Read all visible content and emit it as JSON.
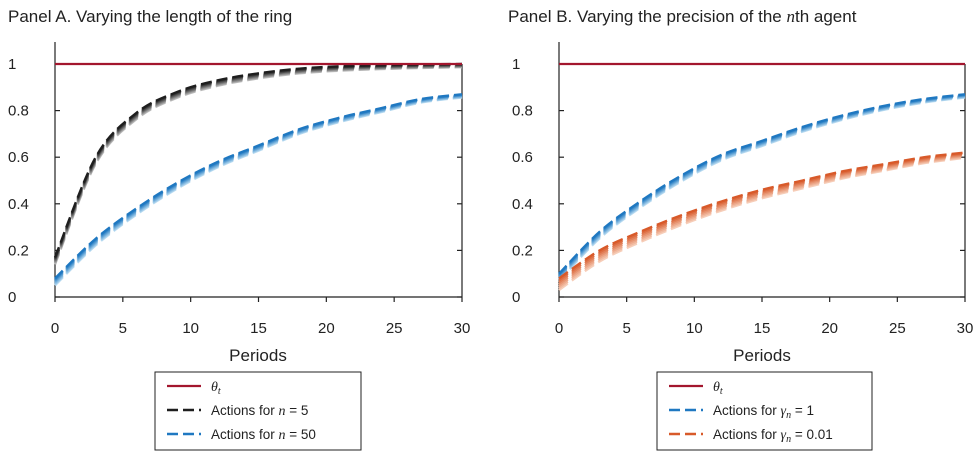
{
  "chart_data": [
    {
      "type": "line",
      "panel_id": "A",
      "title": "Panel A. Varying the length of the ring",
      "xlabel": "Periods",
      "ylabel": "",
      "xlim": [
        0,
        30
      ],
      "ylim": [
        0,
        1
      ],
      "x_ticks": [
        "0",
        "5",
        "10",
        "15",
        "20",
        "25",
        "30"
      ],
      "y_ticks": [
        "0",
        "0.2",
        "0.4",
        "0.6",
        "0.8",
        "1"
      ],
      "x": [
        0,
        3,
        6,
        9,
        12,
        15,
        18,
        21,
        24,
        27,
        30
      ],
      "series": [
        {
          "name": "θt",
          "legend": {
            "text": "",
            "math": "θ",
            "sub": "t"
          },
          "style": "solid",
          "color": "#a3162e",
          "values": [
            1,
            1,
            1,
            1,
            1,
            1,
            1,
            1,
            1,
            1,
            1
          ]
        },
        {
          "name": "Actions for n = 5",
          "legend": {
            "text": "Actions for ",
            "math": "n",
            "sub": "",
            "rest": " = 5"
          },
          "style": "dashed",
          "color": "#1e1e1e",
          "light": "#bdbdbd",
          "band": 0.03,
          "values": [
            0.17,
            0.6,
            0.79,
            0.88,
            0.93,
            0.96,
            0.98,
            0.99,
            0.995,
            0.998,
            1.0
          ]
        },
        {
          "name": "Actions for n = 50",
          "legend": {
            "text": "Actions for ",
            "math": "n",
            "sub": "",
            "rest": " = 50"
          },
          "style": "dashed",
          "color": "#1f78c1",
          "light": "#b9dbf1",
          "band": 0.03,
          "values": [
            0.08,
            0.25,
            0.38,
            0.49,
            0.58,
            0.65,
            0.72,
            0.77,
            0.81,
            0.85,
            0.87
          ]
        }
      ]
    },
    {
      "type": "line",
      "panel_id": "B",
      "title": "Panel B. Varying the precision of the nth agent",
      "title_parts": {
        "before": "Panel B. Varying the precision of the ",
        "math": "n",
        "after": "th agent"
      },
      "xlabel": "Periods",
      "ylabel": "",
      "xlim": [
        0,
        30
      ],
      "ylim": [
        0,
        1
      ],
      "x_ticks": [
        "0",
        "5",
        "10",
        "15",
        "20",
        "25",
        "30"
      ],
      "y_ticks": [
        "0",
        "0.2",
        "0.4",
        "0.6",
        "0.8",
        "1"
      ],
      "x": [
        0,
        3,
        6,
        9,
        12,
        15,
        18,
        21,
        24,
        27,
        30
      ],
      "series": [
        {
          "name": "θt",
          "legend": {
            "text": "",
            "math": "θ",
            "sub": "t"
          },
          "style": "solid",
          "color": "#a3162e",
          "values": [
            1,
            1,
            1,
            1,
            1,
            1,
            1,
            1,
            1,
            1,
            1
          ]
        },
        {
          "name": "Actions for γn = 1",
          "legend": {
            "text": "Actions for ",
            "math": "γ",
            "sub": "n",
            "rest": " = 1"
          },
          "style": "dashed",
          "color": "#1f78c1",
          "light": "#b9dbf1",
          "band": 0.03,
          "values": [
            0.1,
            0.28,
            0.41,
            0.52,
            0.61,
            0.67,
            0.73,
            0.78,
            0.82,
            0.85,
            0.87
          ]
        },
        {
          "name": "Actions for γn = 0.01",
          "legend": {
            "text": "Actions for ",
            "math": "γ",
            "sub": "n",
            "rest": " = 0.01"
          },
          "style": "dashed",
          "color": "#d85a2a",
          "light": "#f6cdb8",
          "band": 0.05,
          "values": [
            0.08,
            0.2,
            0.28,
            0.35,
            0.41,
            0.46,
            0.5,
            0.54,
            0.57,
            0.6,
            0.62
          ]
        }
      ]
    }
  ]
}
